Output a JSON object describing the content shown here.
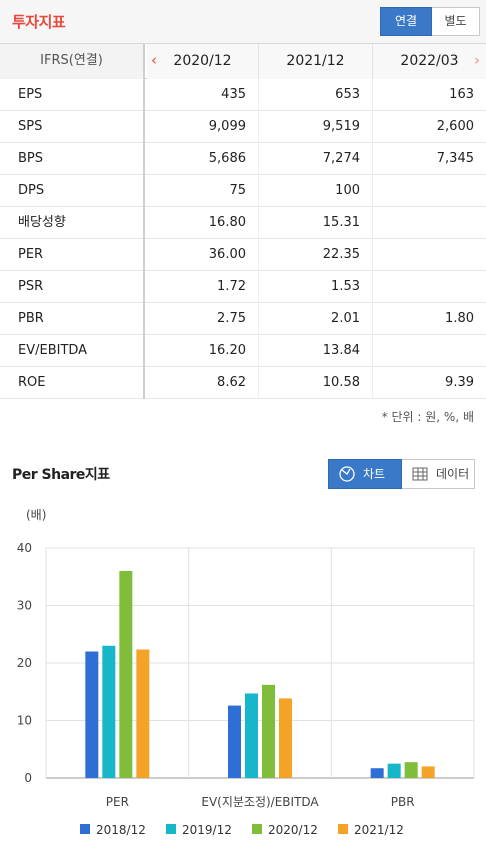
{
  "header": {
    "title": "투자지표",
    "toggle_consolidated": "연결",
    "toggle_separate": "별도"
  },
  "table": {
    "label_header": "IFRS(연결)",
    "columns": [
      "2020/12",
      "2021/12",
      "2022/03"
    ],
    "rows": [
      {
        "label": "EPS",
        "values": [
          "435",
          "653",
          "163"
        ]
      },
      {
        "label": "SPS",
        "values": [
          "9,099",
          "9,519",
          "2,600"
        ]
      },
      {
        "label": "BPS",
        "values": [
          "5,686",
          "7,274",
          "7,345"
        ]
      },
      {
        "label": "DPS",
        "values": [
          "75",
          "100",
          ""
        ]
      },
      {
        "label": "배당성향",
        "values": [
          "16.80",
          "15.31",
          ""
        ]
      },
      {
        "label": "PER",
        "values": [
          "36.00",
          "22.35",
          ""
        ]
      },
      {
        "label": "PSR",
        "values": [
          "1.72",
          "1.53",
          ""
        ]
      },
      {
        "label": "PBR",
        "values": [
          "2.75",
          "2.01",
          "1.80"
        ]
      },
      {
        "label": "EV/EBITDA",
        "values": [
          "16.20",
          "13.84",
          ""
        ]
      },
      {
        "label": "ROE",
        "values": [
          "8.62",
          "10.58",
          "9.39"
        ]
      }
    ],
    "unit_note": "* 단위 : 원, %, 배"
  },
  "section": {
    "title": "Per Share지표",
    "chart_toggle": "차트",
    "data_toggle": "데이터"
  },
  "colors": {
    "accent": "#e8483c",
    "button": "#3a78c8"
  },
  "chart_data": {
    "type": "bar",
    "ylabel": "(배)",
    "ylim": [
      0,
      40
    ],
    "yticks": [
      0,
      10,
      20,
      30,
      40
    ],
    "categories": [
      "PER",
      "EV(지분조정)/EBITDA",
      "PBR"
    ],
    "series": [
      {
        "name": "2018/12",
        "color": "#2e6fd6",
        "values": [
          22.0,
          12.6,
          1.7
        ]
      },
      {
        "name": "2019/12",
        "color": "#17b6c9",
        "values": [
          23.0,
          14.7,
          2.5
        ]
      },
      {
        "name": "2020/12",
        "color": "#7fbd3b",
        "values": [
          36.0,
          16.2,
          2.75
        ]
      },
      {
        "name": "2021/12",
        "color": "#f4a326",
        "values": [
          22.35,
          13.84,
          2.01
        ]
      }
    ],
    "grid": true,
    "legend": "bottom"
  }
}
